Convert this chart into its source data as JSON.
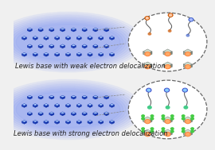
{
  "panel1_label": "Lewis base with weak electron delocalization",
  "panel2_label": "Lewis base with strong electron delocalization",
  "bg_color": "#f0f0f0",
  "label_fontsize": 6.0,
  "label_color": "#222222",
  "crystal_top": "#aaccff",
  "crystal_left": "#2244bb",
  "crystal_right": "#1133aa",
  "crystal_edge": "#1133aa",
  "glow_color": "#4466ff",
  "zoom_bg": "#ffffff",
  "zoom_edge": "#666666",
  "gray_top": "#ccddcc",
  "gray_left": "#99aa99",
  "gray_right": "#778877",
  "gray_edge": "#666666",
  "orange_outer": "#ff8844",
  "orange_inner": "#ffaa66",
  "green_dot": "#44cc44",
  "blue_head": "#4455cc",
  "cyan_inner": "#88ccff",
  "green_base": "#44cc88",
  "chain_color": "#555555",
  "dashed_color": "#888888"
}
